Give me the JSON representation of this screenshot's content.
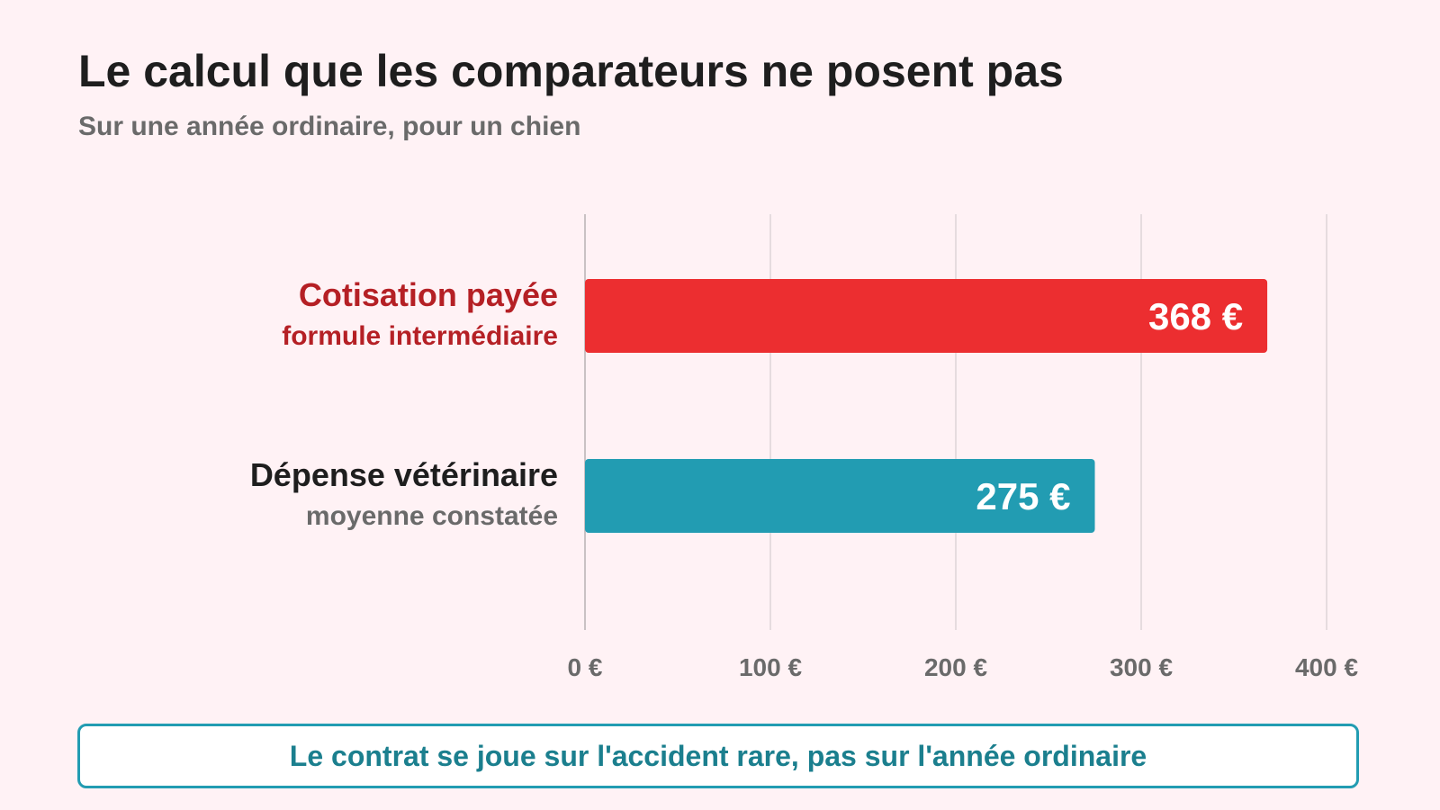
{
  "header": {
    "title": "Le calcul que les comparateurs ne posent pas",
    "subtitle": "Sur une année ordinaire, pour un chien"
  },
  "chart_data": {
    "type": "bar",
    "orientation": "horizontal",
    "categories": [
      {
        "label": "Cotisation payée",
        "sublabel": "formule intermédiaire"
      },
      {
        "label": "Dépense vétérinaire",
        "sublabel": "moyenne constatée"
      }
    ],
    "values": [
      368,
      275
    ],
    "value_labels": [
      "368 €",
      "275 €"
    ],
    "bar_colors": [
      "#ec2e30",
      "#229cb2"
    ],
    "category_label_colors": [
      "#b52025",
      "#1e1e1e"
    ],
    "category_sublabel_colors": [
      "#b52025",
      "#6a6a6a"
    ],
    "xlim": [
      0,
      400
    ],
    "x_ticks": [
      0,
      100,
      200,
      300,
      400
    ],
    "x_tick_labels": [
      "0 €",
      "100 €",
      "200 €",
      "300 €",
      "400 €"
    ],
    "grid": true
  },
  "callout": {
    "text": "Le contrat se joue sur l'accident rare, pas sur l'année ordinaire"
  },
  "colors": {
    "background": "#fff2f5",
    "accent_teal": "#229cb2",
    "accent_red": "#ec2e30",
    "gridline": "#e6dcdf",
    "axis": "#c9c1c3",
    "tick_text": "#6a6a6a"
  }
}
